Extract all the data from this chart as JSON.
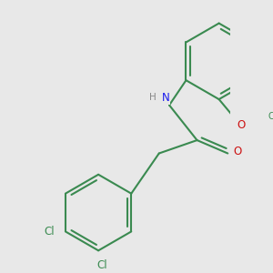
{
  "bg_color": "#e8e8e8",
  "bond_color": "#3a8a50",
  "bond_width": 1.5,
  "atom_colors": {
    "C": "#3a8a50",
    "N": "#1a1aee",
    "O": "#cc1111",
    "Cl": "#3a8a50",
    "H": "#888888"
  },
  "font_size_atom": 8.5,
  "font_size_small": 7.5
}
